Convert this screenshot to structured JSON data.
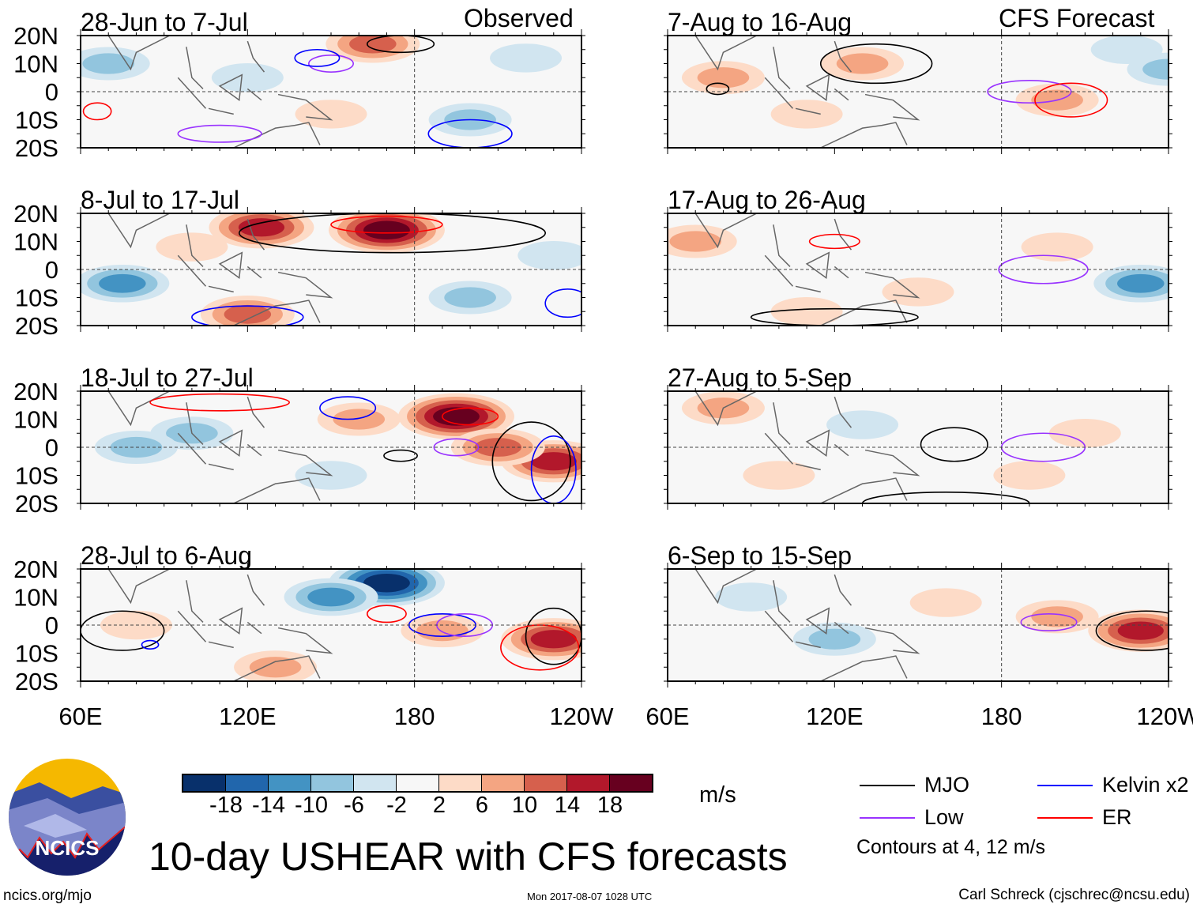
{
  "colors": [
    "#08306b",
    "#2166ac",
    "#4393c3",
    "#92c5de",
    "#d1e5f0",
    "#f7f7f7",
    "#fddbc7",
    "#f4a582",
    "#d6604d",
    "#b2182b",
    "#67001f"
  ],
  "colorbar": {
    "ticks": [
      "-18",
      "-14",
      "-10",
      "-6",
      "-2",
      "2",
      "6",
      "10",
      "14",
      "18"
    ],
    "units": "m/s"
  },
  "axes": {
    "lat_labels": [
      "20N",
      "10N",
      "0",
      "10S",
      "20S"
    ],
    "lon_labels": [
      "60E",
      "120E",
      "180",
      "120W"
    ],
    "lon_range": [
      60,
      240
    ],
    "lat_range": [
      -20,
      20
    ]
  },
  "headers": {
    "observed": "Observed",
    "forecast": "CFS Forecast"
  },
  "panels": [
    {
      "title": "28-Jun to 7-Jul",
      "col": 0,
      "row": 0,
      "shade": [
        [
          165,
          17,
          10
        ],
        [
          70,
          10,
          -6
        ],
        [
          200,
          -10,
          -6
        ],
        [
          120,
          5,
          -2
        ],
        [
          220,
          12,
          -2
        ],
        [
          150,
          -8,
          2
        ]
      ],
      "contours": [
        [
          "MJO",
          175,
          17,
          12,
          3
        ],
        [
          "Low",
          150,
          10,
          8,
          3
        ],
        [
          "Kelvin",
          145,
          12,
          8,
          3
        ],
        [
          "ER",
          66,
          -7,
          5,
          3
        ],
        [
          "Low",
          110,
          -15,
          15,
          3
        ],
        [
          "Kelvin",
          200,
          -15,
          15,
          5
        ]
      ]
    },
    {
      "title": "8-Jul to 17-Jul",
      "col": 0,
      "row": 1,
      "shade": [
        [
          170,
          14,
          18
        ],
        [
          125,
          15,
          14
        ],
        [
          120,
          -16,
          10
        ],
        [
          75,
          -5,
          -10
        ],
        [
          200,
          -10,
          -6
        ],
        [
          230,
          5,
          -2
        ],
        [
          100,
          8,
          2
        ]
      ],
      "contours": [
        [
          "MJO",
          172,
          13,
          55,
          7
        ],
        [
          "ER",
          170,
          16,
          20,
          3
        ],
        [
          "Kelvin",
          120,
          -17,
          20,
          4
        ],
        [
          "Kelvin",
          235,
          -12,
          8,
          5
        ]
      ]
    },
    {
      "title": "18-Jul to 27-Jul",
      "col": 0,
      "row": 2,
      "shade": [
        [
          195,
          11,
          18
        ],
        [
          230,
          -5,
          14
        ],
        [
          210,
          0,
          10
        ],
        [
          100,
          5,
          -6
        ],
        [
          80,
          0,
          -6
        ],
        [
          150,
          -10,
          -2
        ],
        [
          160,
          10,
          6
        ]
      ],
      "contours": [
        [
          "MJO",
          222,
          -5,
          14,
          14
        ],
        [
          "Kelvin",
          230,
          -8,
          8,
          12
        ],
        [
          "Low",
          195,
          0,
          8,
          3
        ],
        [
          "ER",
          200,
          11,
          10,
          3
        ],
        [
          "Kelvin",
          156,
          14,
          10,
          4
        ],
        [
          "ER",
          110,
          16,
          25,
          3
        ],
        [
          "MJO",
          175,
          -3,
          6,
          2
        ]
      ]
    },
    {
      "title": "28-Jul to 6-Aug",
      "col": 0,
      "row": 3,
      "shade": [
        [
          170,
          15,
          -18
        ],
        [
          150,
          10,
          -10
        ],
        [
          230,
          -5,
          14
        ],
        [
          190,
          -2,
          6
        ],
        [
          80,
          0,
          2
        ],
        [
          130,
          -15,
          6
        ]
      ],
      "contours": [
        [
          "Kelvin",
          190,
          0,
          12,
          4
        ],
        [
          "Low",
          198,
          0,
          10,
          4
        ],
        [
          "ER",
          170,
          4,
          7,
          3
        ],
        [
          "MJO",
          230,
          -4,
          10,
          10
        ],
        [
          "ER",
          225,
          -8,
          14,
          8
        ],
        [
          "MJO",
          75,
          -2,
          15,
          7
        ],
        [
          "Kelvin",
          85,
          -7,
          3,
          1.5
        ]
      ]
    },
    {
      "title": "7-Aug to 16-Aug",
      "col": 1,
      "row": 0,
      "shade": [
        [
          80,
          5,
          6
        ],
        [
          130,
          10,
          6
        ],
        [
          240,
          8,
          -6
        ],
        [
          200,
          -3,
          6
        ],
        [
          110,
          -8,
          2
        ],
        [
          225,
          15,
          -2
        ]
      ],
      "contours": [
        [
          "MJO",
          135,
          10,
          20,
          7
        ],
        [
          "Low",
          190,
          0,
          15,
          4
        ],
        [
          "ER",
          205,
          -3,
          13,
          6
        ],
        [
          "MJO",
          78,
          1,
          4,
          2
        ]
      ]
    },
    {
      "title": "17-Aug to 26-Aug",
      "col": 1,
      "row": 1,
      "shade": [
        [
          70,
          10,
          6
        ],
        [
          230,
          -5,
          -10
        ],
        [
          150,
          -8,
          2
        ],
        [
          200,
          8,
          2
        ],
        [
          110,
          -15,
          2
        ]
      ],
      "contours": [
        [
          "Low",
          195,
          0,
          16,
          5
        ],
        [
          "ER",
          120,
          10,
          9,
          2.5
        ],
        [
          "MJO",
          120,
          -17,
          30,
          3
        ]
      ]
    },
    {
      "title": "27-Aug to 5-Sep",
      "col": 1,
      "row": 2,
      "shade": [
        [
          80,
          14,
          6
        ],
        [
          130,
          8,
          -2
        ],
        [
          210,
          5,
          2
        ],
        [
          100,
          -10,
          2
        ],
        [
          190,
          -10,
          2
        ]
      ],
      "contours": [
        [
          "Low",
          195,
          0,
          15,
          5
        ],
        [
          "MJO",
          163,
          1,
          12,
          6
        ],
        [
          "MJO",
          160,
          -20,
          30,
          4
        ]
      ]
    },
    {
      "title": "6-Sep to 15-Sep",
      "col": 1,
      "row": 3,
      "shade": [
        [
          230,
          -2,
          14
        ],
        [
          200,
          3,
          6
        ],
        [
          120,
          -5,
          -6
        ],
        [
          90,
          10,
          -2
        ],
        [
          160,
          8,
          2
        ]
      ],
      "contours": [
        [
          "Low",
          197,
          1,
          10,
          3
        ],
        [
          "MJO",
          232,
          -2,
          18,
          7
        ]
      ]
    }
  ],
  "contour_colors": {
    "MJO": "#000000",
    "Kelvin": "#0000ff",
    "Low": "#9933ff",
    "ER": "#ff0000"
  },
  "legend": [
    {
      "label": "MJO",
      "key": "MJO"
    },
    {
      "label": "Kelvin x2",
      "key": "Kelvin"
    },
    {
      "label": "Low",
      "key": "Low"
    },
    {
      "label": "ER",
      "key": "ER"
    }
  ],
  "contour_note": "Contours at 4, 12 m/s",
  "title": "10-day USHEAR with CFS forecasts",
  "footer": {
    "url": "ncics.org/mjo",
    "timestamp": "Mon 2017-08-07 1028 UTC",
    "credit": "Carl Schreck (cjschrec@ncsu.edu)"
  },
  "logo_text": "NCICS"
}
